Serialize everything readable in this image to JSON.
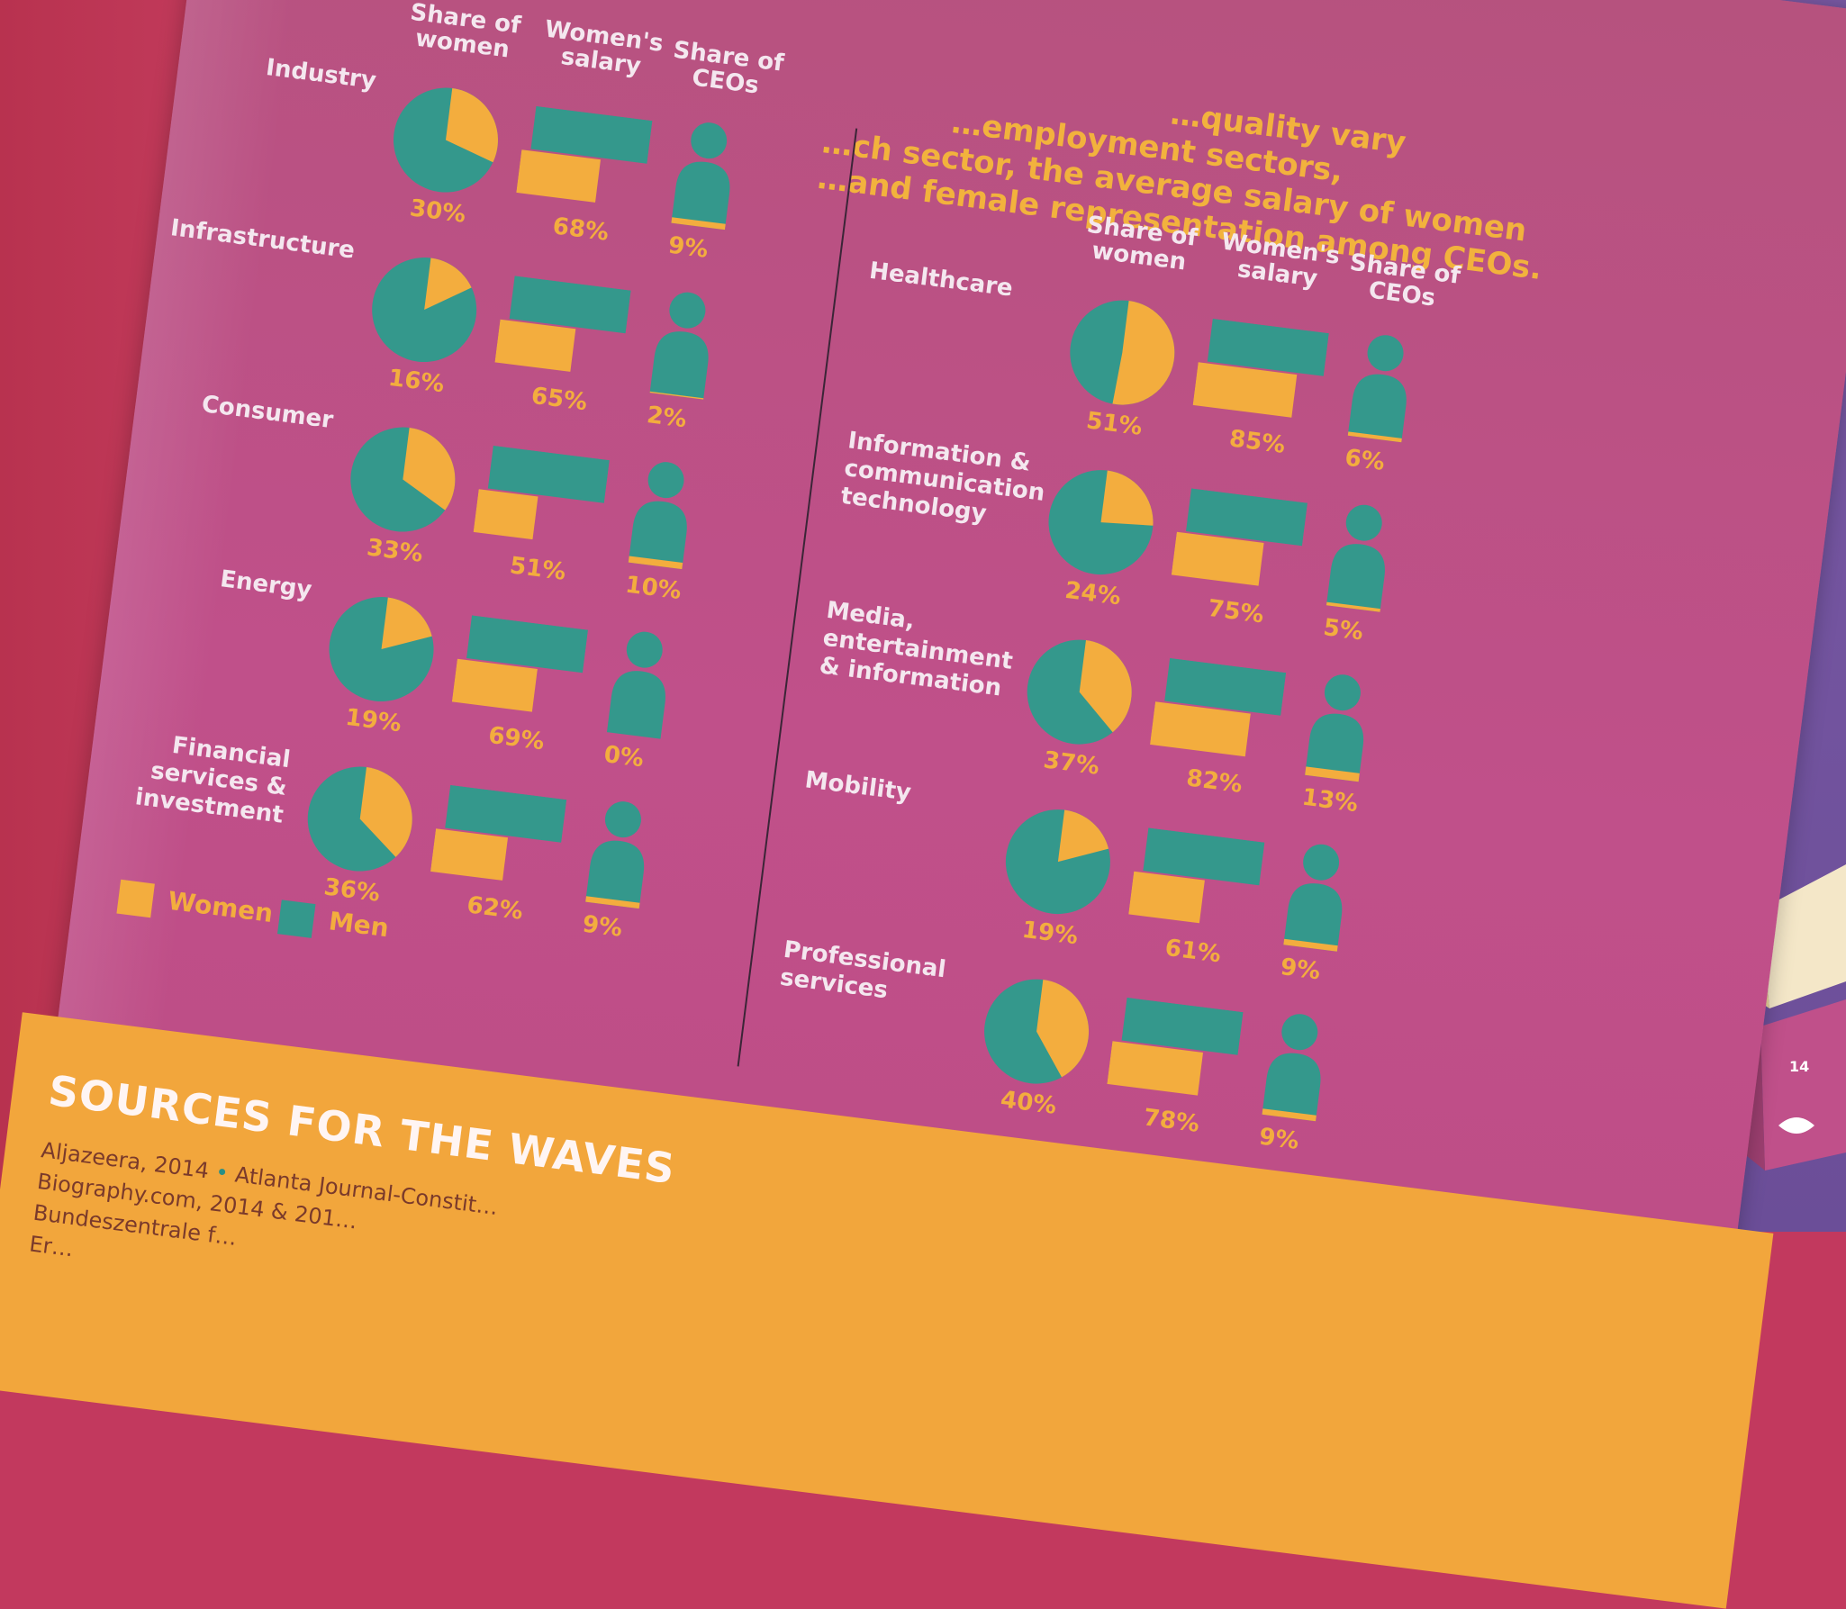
{
  "intro": {
    "line1": "…quality vary",
    "line2": "…ch sector, the average salary of women",
    "line3": "…and female representation among CEOs.",
    "line0": "…employment sectors,"
  },
  "headers": {
    "share": "Share of women",
    "salary": "Women's salary",
    "ceos": "Share of CEOs"
  },
  "colors": {
    "women": "#f3ad3e",
    "men": "#34988c",
    "page": "#bd4c84",
    "footer": "#f2a63c"
  },
  "left_sectors": [
    {
      "name": "Industry",
      "share": "30%",
      "salary": "68%",
      "ceos": "9%",
      "share_v": 30,
      "salary_v": 68,
      "ceos_v": 9
    },
    {
      "name": "Infrastructure",
      "share": "16%",
      "salary": "65%",
      "ceos": "2%",
      "share_v": 16,
      "salary_v": 65,
      "ceos_v": 2
    },
    {
      "name": "Consumer",
      "share": "33%",
      "salary": "51%",
      "ceos": "10%",
      "share_v": 33,
      "salary_v": 51,
      "ceos_v": 10
    },
    {
      "name": "Energy",
      "share": "19%",
      "salary": "69%",
      "ceos": "0%",
      "share_v": 19,
      "salary_v": 69,
      "ceos_v": 0
    },
    {
      "name": "Financial services & investment",
      "share": "36%",
      "salary": "62%",
      "ceos": "9%",
      "share_v": 36,
      "salary_v": 62,
      "ceos_v": 9
    }
  ],
  "right_sectors": [
    {
      "name": "Healthcare",
      "share": "51%",
      "salary": "85%",
      "ceos": "6%",
      "share_v": 51,
      "salary_v": 85,
      "ceos_v": 6
    },
    {
      "name": "Information & communication technology",
      "share": "24%",
      "salary": "75%",
      "ceos": "5%",
      "share_v": 24,
      "salary_v": 75,
      "ceos_v": 5
    },
    {
      "name": "Media, entertainment & information",
      "share": "37%",
      "salary": "82%",
      "ceos": "13%",
      "share_v": 37,
      "salary_v": 82,
      "ceos_v": 13
    },
    {
      "name": "Mobility",
      "share": "19%",
      "salary": "61%",
      "ceos": "9%",
      "share_v": 19,
      "salary_v": 61,
      "ceos_v": 9
    },
    {
      "name": "Professional services",
      "share": "40%",
      "salary": "78%",
      "ceos": "9%",
      "share_v": 40,
      "salary_v": 78,
      "ceos_v": 9
    }
  ],
  "legend": {
    "women": "Women",
    "men": "Men"
  },
  "sources": {
    "title": "SOURCES FOR THE WAVES",
    "line1a": "Aljazeera, 2014",
    "line1b": "Atlanta Journal-Constit…",
    "line2": "Biography.com, 2014 & 201…",
    "line3": "Bundeszentrale f…",
    "line4": "Er…"
  },
  "badge": {
    "number": "14"
  }
}
